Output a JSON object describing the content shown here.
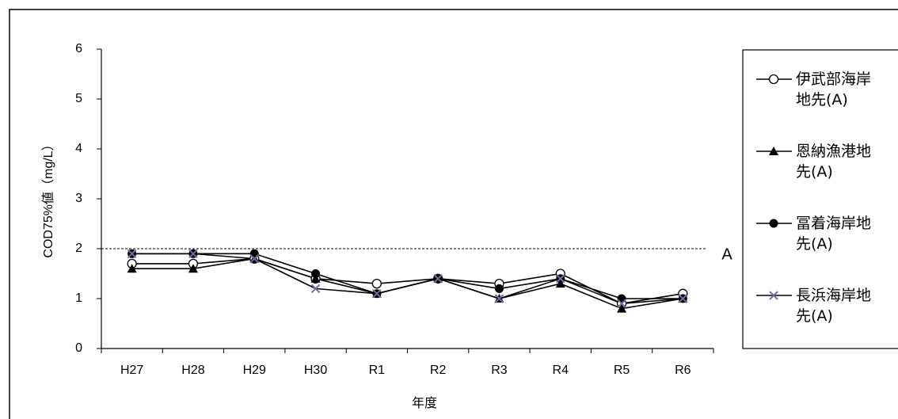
{
  "chart_data": {
    "type": "line",
    "categories": [
      "H27",
      "H28",
      "H29",
      "H30",
      "R1",
      "R2",
      "R3",
      "R4",
      "R5",
      "R6"
    ],
    "x_label": "年度",
    "y_label": "COD75%値（mg/L）",
    "ylim": [
      0,
      6
    ],
    "yticks": [
      0,
      1,
      2,
      3,
      4,
      5,
      6
    ],
    "reference_line": 2,
    "reference_label": "A",
    "series": [
      {
        "name": "伊武部海岸地先(A)",
        "color": "#000000",
        "marker": "circle-open",
        "values": [
          1.7,
          1.7,
          1.8,
          1.4,
          1.3,
          1.4,
          1.3,
          1.5,
          0.9,
          1.1
        ]
      },
      {
        "name": "恩納漁港地先(A)",
        "color": "#000000",
        "marker": "triangle",
        "values": [
          1.6,
          1.6,
          1.8,
          1.4,
          1.1,
          1.4,
          1.0,
          1.3,
          0.8,
          1.0
        ]
      },
      {
        "name": "冨着海岸地先(A)",
        "color": "#000000",
        "marker": "circle",
        "values": [
          1.9,
          1.9,
          1.9,
          1.5,
          1.1,
          1.4,
          1.2,
          1.4,
          1.0,
          1.0
        ]
      },
      {
        "name": "長浜海岸地先(A)",
        "color": "#7a6a9e",
        "marker": "cross",
        "values": [
          1.9,
          1.9,
          1.8,
          1.2,
          1.1,
          1.4,
          1.0,
          1.4,
          0.9,
          1.0
        ]
      }
    ]
  }
}
